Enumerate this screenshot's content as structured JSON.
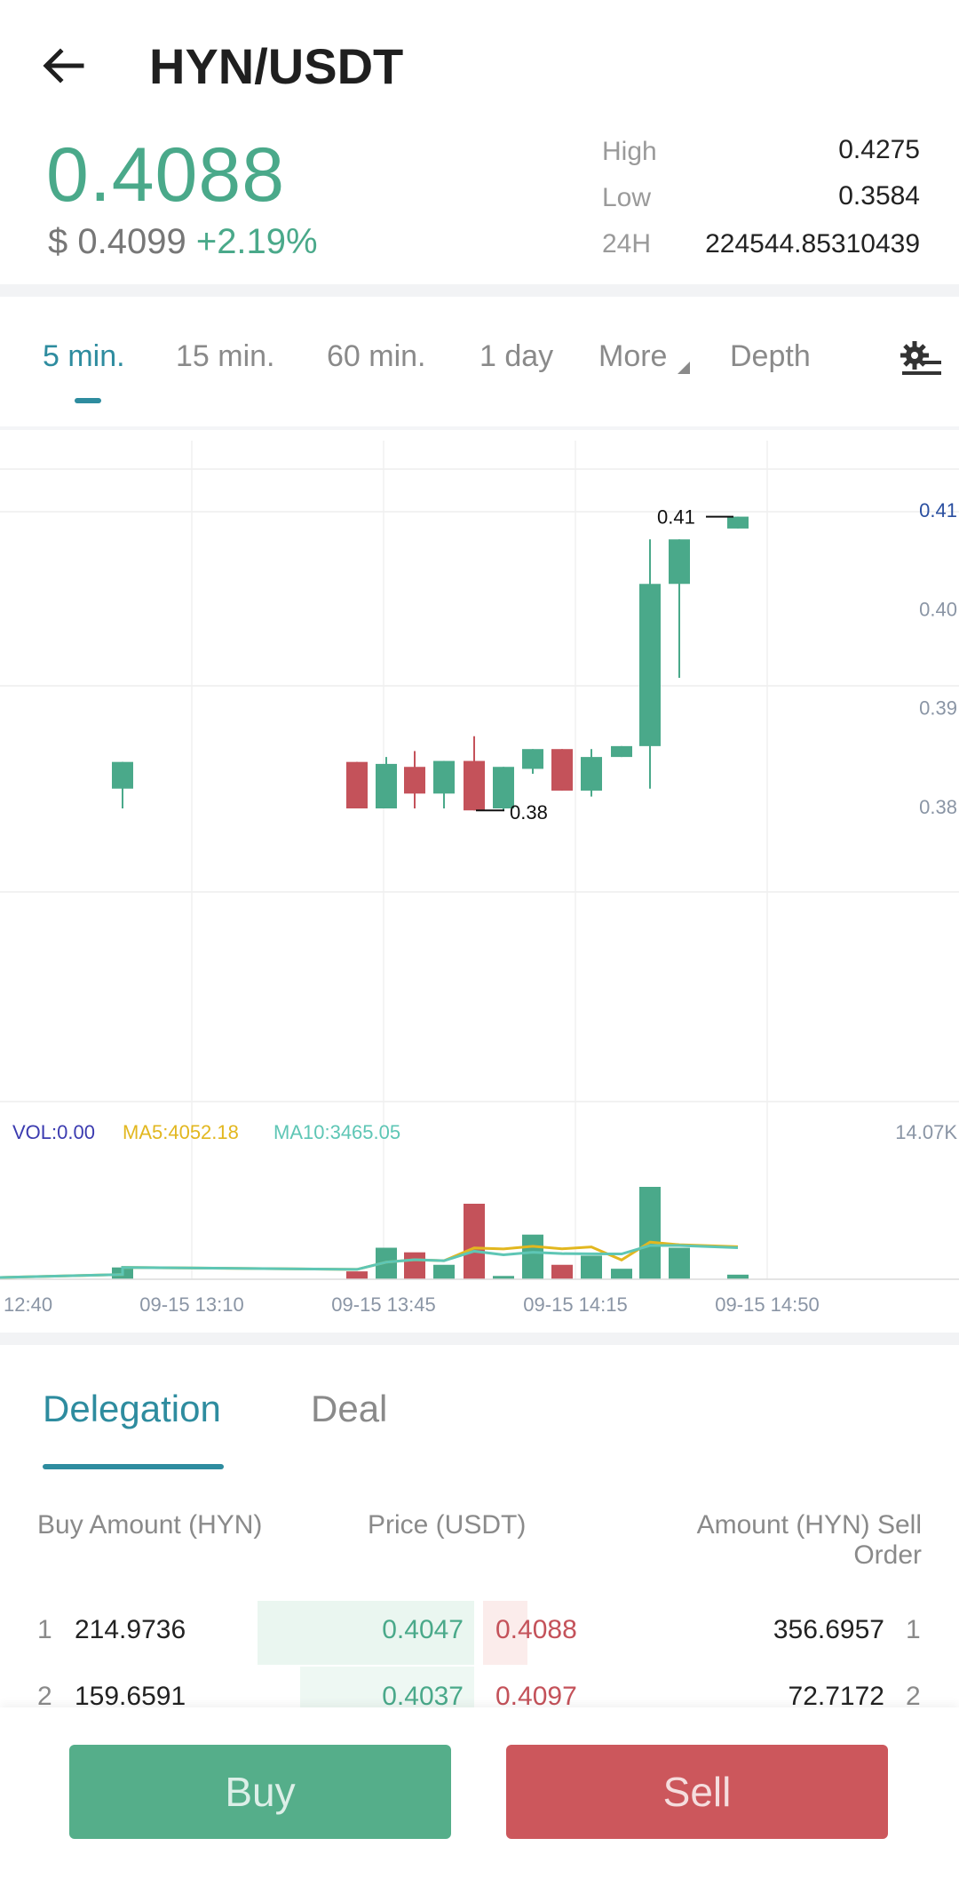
{
  "header": {
    "title": "HYN/USDT"
  },
  "summary": {
    "price": "0.4088",
    "usd_price": "$ 0.4099",
    "change": "+2.19%",
    "stats": [
      {
        "label": "High",
        "value": "0.4275"
      },
      {
        "label": "Low",
        "value": "0.3584"
      },
      {
        "label": "24H",
        "value": "224544.85310439"
      }
    ]
  },
  "timeframes": [
    "5 min.",
    "15 min.",
    "60 min.",
    "1 day",
    "More",
    "Depth"
  ],
  "colors": {
    "up": "#4aa98a",
    "down": "#c4525a",
    "accent": "#2e8c9f",
    "ma5": "#e2b71f",
    "ma10": "#5ec6b5",
    "vol": "#3b3bb0"
  },
  "chart_data": {
    "type": "candlestick",
    "price_axis": [
      "0.41",
      "0.40",
      "0.39",
      "0.38"
    ],
    "max_label": "0.41",
    "min_label": "0.38",
    "vol_label": "VOL:0.00",
    "ma5_label": "MA5:4052.18",
    "ma10_label": "MA10:3465.05",
    "vol_axis_max": "14.07K",
    "x_labels": [
      "12:40",
      "09-15 13:10",
      "09-15 13:45",
      "09-15 14:15",
      "09-15 14:50"
    ],
    "candles": [
      {
        "open": 0.382,
        "close": 0.3847,
        "high": 0.3847,
        "low": 0.38,
        "vol": 1800
      },
      {
        "open": 0.3847,
        "close": 0.38,
        "high": 0.3847,
        "low": 0.38,
        "vol": 1200
      },
      {
        "open": 0.38,
        "close": 0.3845,
        "high": 0.3852,
        "low": 0.38,
        "vol": 4800
      },
      {
        "open": 0.3842,
        "close": 0.3815,
        "high": 0.3858,
        "low": 0.38,
        "vol": 4100
      },
      {
        "open": 0.3815,
        "close": 0.3848,
        "high": 0.3848,
        "low": 0.38,
        "vol": 2200
      },
      {
        "open": 0.3848,
        "close": 0.3798,
        "high": 0.3873,
        "low": 0.3798,
        "vol": 11500
      },
      {
        "open": 0.38,
        "close": 0.3842,
        "high": 0.3842,
        "low": 0.3798,
        "vol": 500
      },
      {
        "open": 0.384,
        "close": 0.386,
        "high": 0.386,
        "low": 0.3835,
        "vol": 6800
      },
      {
        "open": 0.386,
        "close": 0.3818,
        "high": 0.386,
        "low": 0.3818,
        "vol": 2200
      },
      {
        "open": 0.3818,
        "close": 0.3852,
        "high": 0.386,
        "low": 0.3812,
        "vol": 3600
      },
      {
        "open": 0.3852,
        "close": 0.3863,
        "high": 0.3863,
        "low": 0.3852,
        "vol": 1600
      },
      {
        "open": 0.3863,
        "close": 0.4027,
        "high": 0.4072,
        "low": 0.382,
        "vol": 14070
      },
      {
        "open": 0.4027,
        "close": 0.4072,
        "high": 0.4072,
        "low": 0.3932,
        "vol": 4800
      },
      {
        "open": 0.4083,
        "close": 0.4095,
        "high": 0.4095,
        "low": 0.4083,
        "vol": 700
      }
    ]
  },
  "orderbook": {
    "tabs": [
      "Delegation",
      "Deal"
    ],
    "headers": {
      "buy": "Buy Amount (HYN)",
      "price": "Price (USDT)",
      "sell": "Amount (HYN) Sell Order"
    },
    "rows": [
      {
        "idx": "1",
        "buy_amount": "214.9736",
        "buy_price": "0.4047",
        "sell_price": "0.4088",
        "sell_amount": "356.6957",
        "buy_depth": 0.5,
        "sell_depth": 0.35
      },
      {
        "idx": "2",
        "buy_amount": "159.6591",
        "buy_price": "0.4037",
        "sell_price": "0.4097",
        "sell_amount": "72.7172",
        "buy_depth": 0.3,
        "sell_depth": 0.08
      }
    ]
  },
  "actions": {
    "buy": "Buy",
    "sell": "Sell"
  }
}
